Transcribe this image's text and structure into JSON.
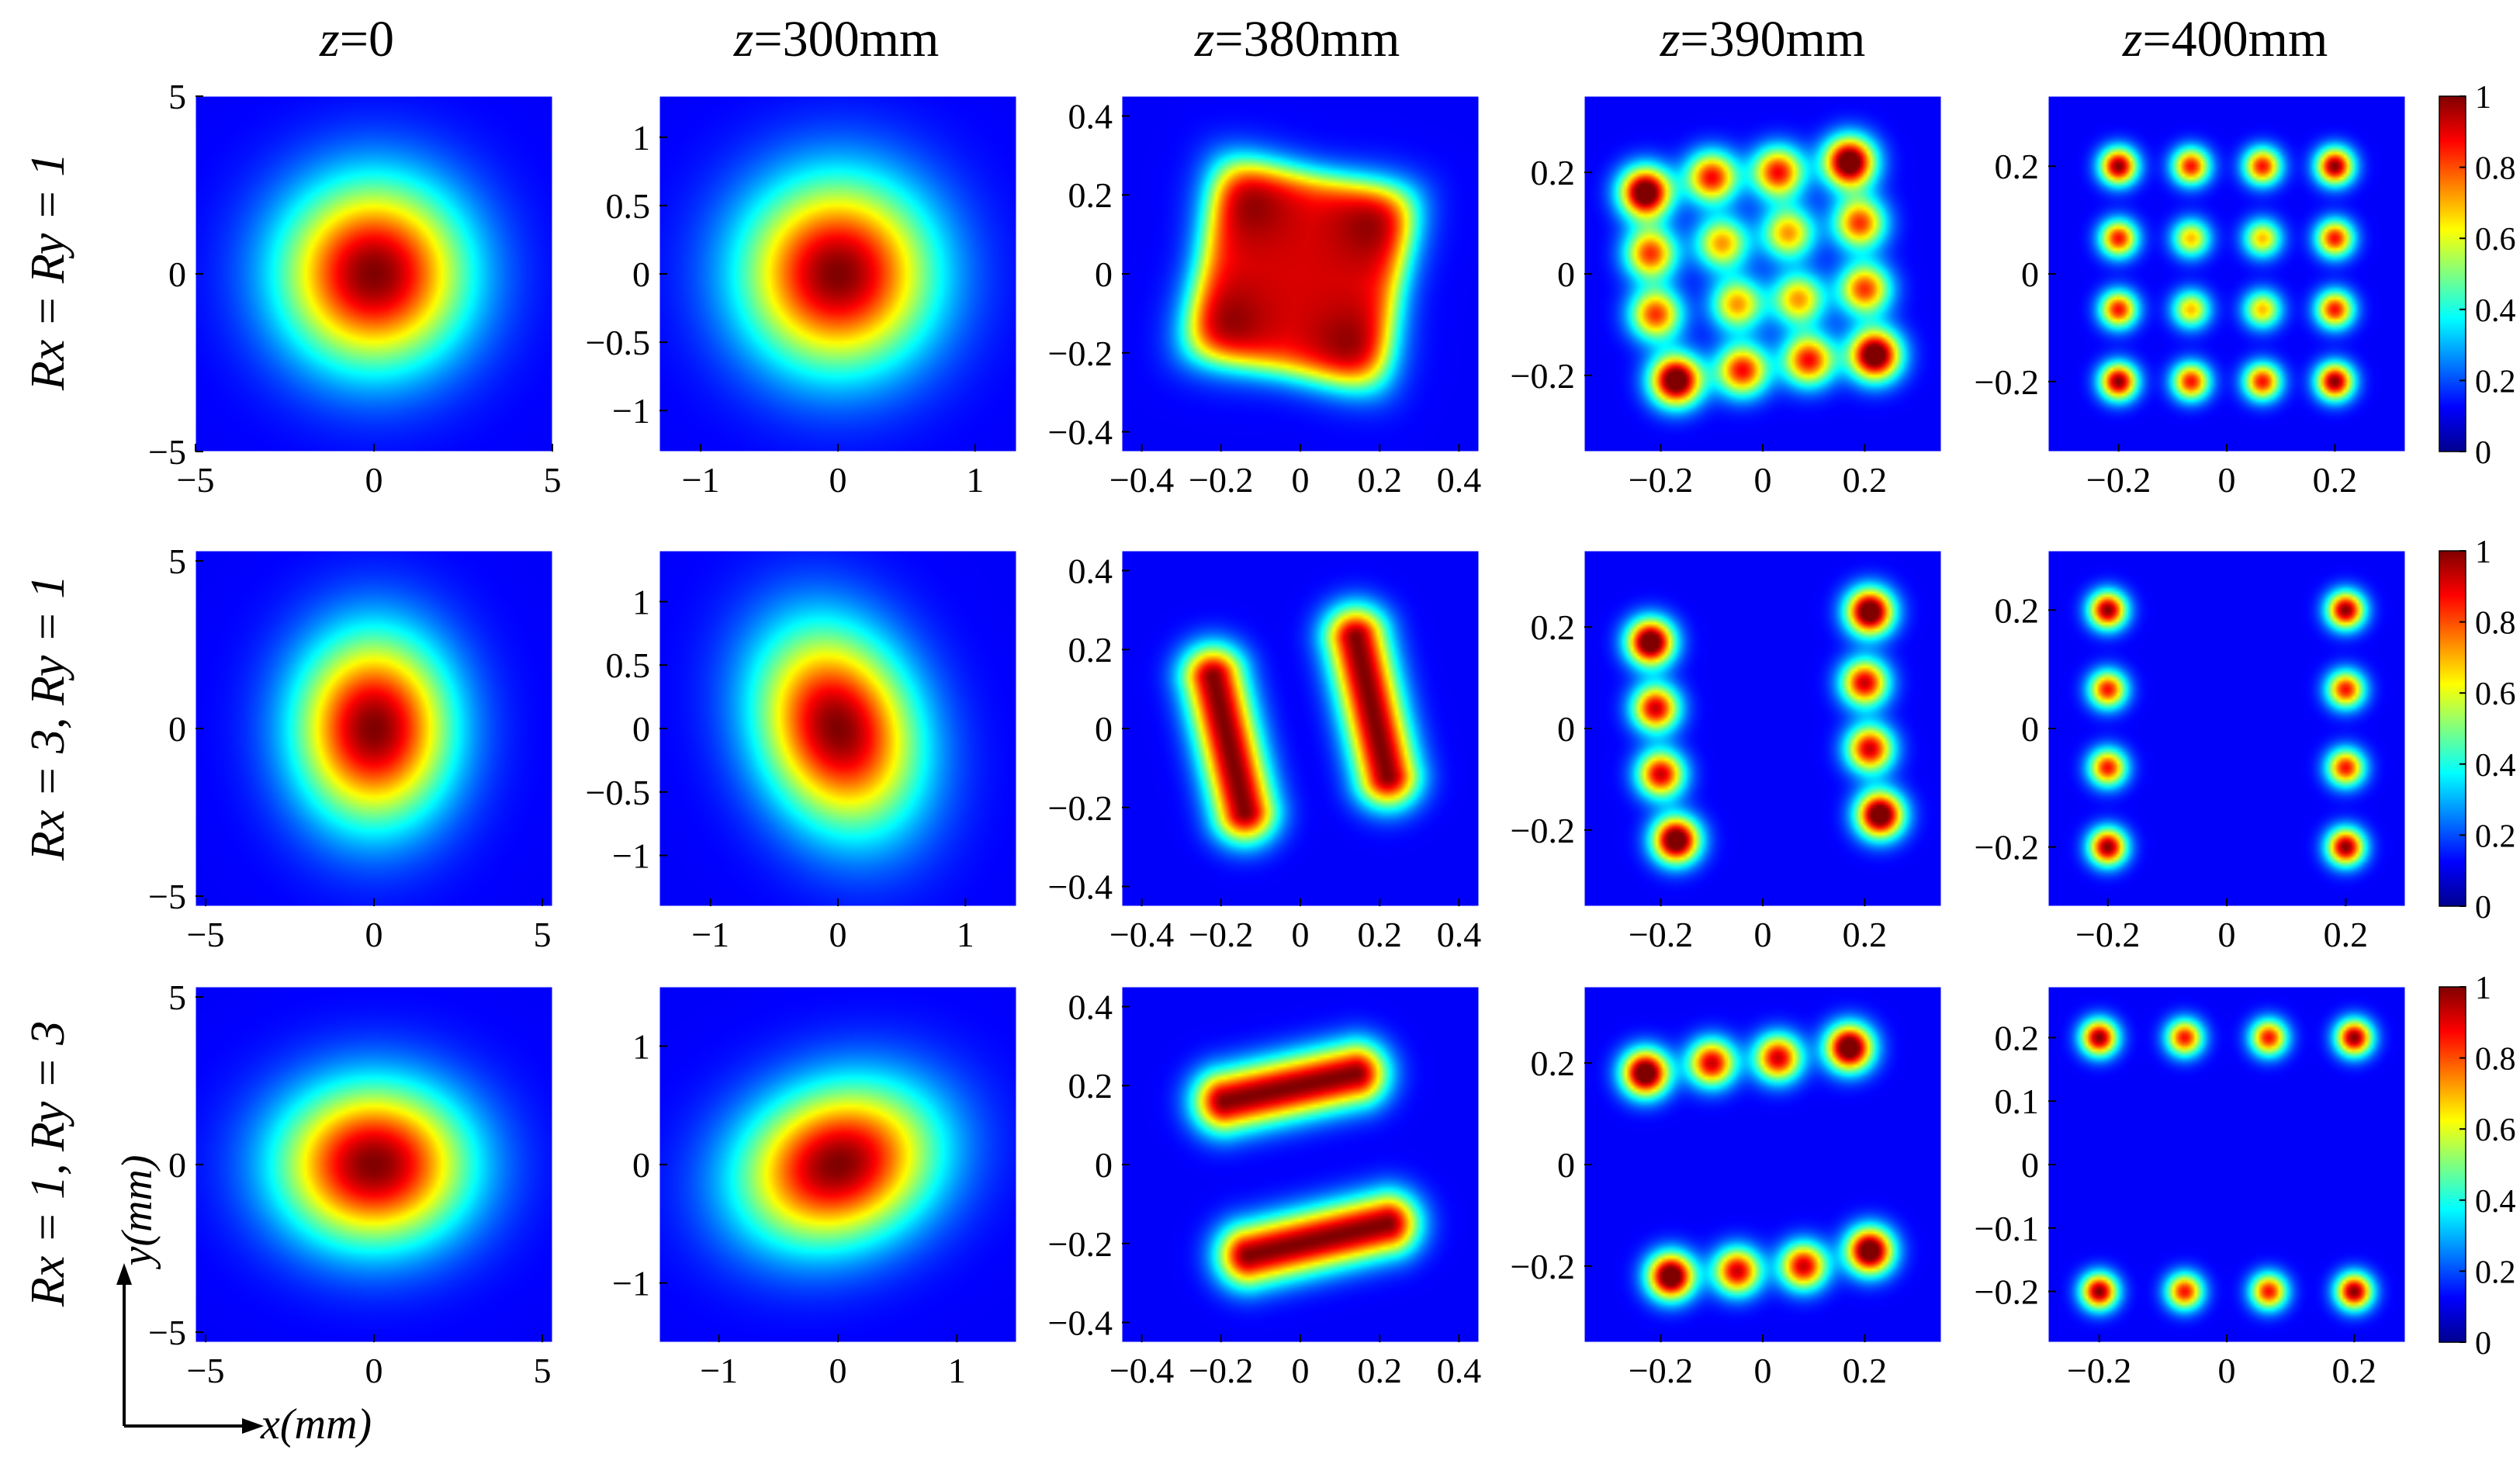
{
  "figure": {
    "column_headers": [
      {
        "var": "z",
        "value": "=0"
      },
      {
        "var": "z",
        "value": "=300mm"
      },
      {
        "var": "z",
        "value": "=380mm"
      },
      {
        "var": "z",
        "value": "=390mm"
      },
      {
        "var": "z",
        "value": "=400mm"
      }
    ],
    "row_labels": [
      {
        "text": "Rx = Ry = 1"
      },
      {
        "text": "Rx = 3, Ry = 1"
      },
      {
        "text": "Rx = 1, Ry = 3"
      }
    ],
    "axis_indicator": {
      "y": "y(mm)",
      "x": "x(mm)"
    }
  },
  "chart_data": [
    {
      "type": "heatmap",
      "row": 0,
      "col": 0,
      "title": "z=0",
      "xlim": [
        -5,
        5
      ],
      "ylim": [
        -5,
        5
      ],
      "xticks": [
        -5,
        0,
        5
      ],
      "xtick_labels": [
        "−5",
        "0",
        "5"
      ],
      "yticks": [
        -5,
        0,
        5
      ],
      "ytick_labels": [
        "−5",
        "0",
        "5"
      ],
      "beam": {
        "kind": "gauss",
        "spots": [
          [
            0,
            0
          ]
        ],
        "sx": 1.8,
        "sy": 1.8,
        "rot": 0
      }
    },
    {
      "type": "heatmap",
      "row": 0,
      "col": 1,
      "title": "z=300mm",
      "xlim": [
        -1.3,
        1.3
      ],
      "ylim": [
        -1.3,
        1.3
      ],
      "xticks": [
        -1,
        0,
        1
      ],
      "xtick_labels": [
        "−1",
        "0",
        "1"
      ],
      "yticks": [
        -1,
        -0.5,
        0,
        0.5,
        1
      ],
      "ytick_labels": [
        "−1",
        "−0.5",
        "0",
        "0.5",
        "1"
      ],
      "beam": {
        "kind": "gauss",
        "spots": [
          [
            0,
            0
          ]
        ],
        "sx": 0.48,
        "sy": 0.48,
        "rot": 0
      }
    },
    {
      "type": "heatmap",
      "row": 0,
      "col": 2,
      "title": "z=380mm",
      "xlim": [
        -0.45,
        0.45
      ],
      "ylim": [
        -0.45,
        0.45
      ],
      "xticks": [
        -0.4,
        -0.2,
        0,
        0.2,
        0.4
      ],
      "xtick_labels": [
        "−0.4",
        "−0.2",
        "0",
        "0.2",
        "0.4"
      ],
      "yticks": [
        -0.4,
        -0.2,
        0,
        0.2,
        0.4
      ],
      "ytick_labels": [
        "−0.4",
        "−0.2",
        "0",
        "0.2",
        "0.4"
      ],
      "beam": {
        "kind": "square",
        "half": 0.25,
        "rot": 0.18
      }
    },
    {
      "type": "heatmap",
      "row": 0,
      "col": 3,
      "title": "z=390mm",
      "xlim": [
        -0.35,
        0.35
      ],
      "ylim": [
        -0.35,
        0.35
      ],
      "xticks": [
        -0.2,
        0,
        0.2
      ],
      "xtick_labels": [
        "−0.2",
        "0",
        "0.2"
      ],
      "yticks": [
        -0.2,
        0,
        0.2
      ],
      "ytick_labels": [
        "−0.2",
        "0",
        "0.2"
      ],
      "beam": {
        "kind": "spots",
        "sigma": 0.035,
        "spots": [
          [
            -0.23,
            0.16
          ],
          [
            -0.1,
            0.19
          ],
          [
            0.03,
            0.2
          ],
          [
            0.17,
            0.22
          ],
          [
            -0.22,
            0.04
          ],
          [
            -0.08,
            0.06
          ],
          [
            0.05,
            0.08
          ],
          [
            0.19,
            0.1
          ],
          [
            -0.21,
            -0.08
          ],
          [
            -0.05,
            -0.06
          ],
          [
            0.07,
            -0.05
          ],
          [
            0.2,
            -0.03
          ],
          [
            -0.17,
            -0.21
          ],
          [
            -0.04,
            -0.19
          ],
          [
            0.09,
            -0.17
          ],
          [
            0.22,
            -0.16
          ]
        ],
        "amps": [
          1,
          0.75,
          0.75,
          1,
          0.7,
          0.6,
          0.6,
          0.7,
          0.7,
          0.6,
          0.6,
          0.7,
          1,
          0.75,
          0.75,
          1
        ],
        "bridge": true
      }
    },
    {
      "type": "heatmap",
      "row": 0,
      "col": 4,
      "title": "z=400mm",
      "xlim": [
        -0.33,
        0.33
      ],
      "ylim": [
        -0.33,
        0.33
      ],
      "xticks": [
        -0.2,
        0,
        0.2
      ],
      "xtick_labels": [
        "−0.2",
        "0",
        "0.2"
      ],
      "yticks": [
        -0.2,
        0,
        0.2
      ],
      "ytick_labels": [
        "−0.2",
        "0",
        "0.2"
      ],
      "beam": {
        "kind": "spots",
        "sigma": 0.024,
        "spots": [
          [
            -0.2,
            0.2
          ],
          [
            -0.066,
            0.2
          ],
          [
            0.066,
            0.2
          ],
          [
            0.2,
            0.2
          ],
          [
            -0.2,
            0.066
          ],
          [
            -0.066,
            0.066
          ],
          [
            0.066,
            0.066
          ],
          [
            0.2,
            0.066
          ],
          [
            -0.2,
            -0.066
          ],
          [
            -0.066,
            -0.066
          ],
          [
            0.066,
            -0.066
          ],
          [
            0.2,
            -0.066
          ],
          [
            -0.2,
            -0.2
          ],
          [
            -0.066,
            -0.2
          ],
          [
            0.066,
            -0.2
          ],
          [
            0.2,
            -0.2
          ]
        ],
        "amps": [
          1,
          0.85,
          0.85,
          1,
          0.85,
          0.65,
          0.65,
          0.85,
          0.85,
          0.65,
          0.65,
          0.85,
          1,
          0.85,
          0.85,
          1
        ]
      },
      "colorbar": {
        "min": 0,
        "max": 1,
        "ticks": [
          0,
          0.2,
          0.4,
          0.6,
          0.8,
          1
        ],
        "tick_labels": [
          "0",
          "0.2",
          "0.4",
          "0.6",
          "0.8",
          "1"
        ]
      }
    },
    {
      "type": "heatmap",
      "row": 1,
      "col": 0,
      "title": "z=0",
      "xlim": [
        -5.3,
        5.3
      ],
      "ylim": [
        -5.3,
        5.3
      ],
      "xticks": [
        -5,
        0,
        5
      ],
      "xtick_labels": [
        "−5",
        "0",
        "5"
      ],
      "yticks": [
        -5,
        0,
        5
      ],
      "ytick_labels": [
        "−5",
        "0",
        "5"
      ],
      "beam": {
        "kind": "gauss",
        "spots": [
          [
            0,
            0
          ]
        ],
        "sx": 1.6,
        "sy": 1.95,
        "rot": 0
      }
    },
    {
      "type": "heatmap",
      "row": 1,
      "col": 1,
      "title": "z=300mm",
      "xlim": [
        -1.4,
        1.4
      ],
      "ylim": [
        -1.4,
        1.4
      ],
      "xticks": [
        -1,
        0,
        1
      ],
      "xtick_labels": [
        "−1",
        "0",
        "1"
      ],
      "yticks": [
        -1,
        -0.5,
        0,
        0.5,
        1
      ],
      "ytick_labels": [
        "−1",
        "−0.5",
        "0",
        "0.5",
        "1"
      ],
      "beam": {
        "kind": "gauss",
        "spots": [
          [
            0,
            0
          ]
        ],
        "sx": 0.42,
        "sy": 0.56,
        "rot": -0.35
      }
    },
    {
      "type": "heatmap",
      "row": 1,
      "col": 2,
      "title": "z=380mm",
      "xlim": [
        -0.45,
        0.45
      ],
      "ylim": [
        -0.45,
        0.45
      ],
      "xticks": [
        -0.4,
        -0.2,
        0,
        0.2,
        0.4
      ],
      "xtick_labels": [
        "−0.4",
        "−0.2",
        "0",
        "0.2",
        "0.4"
      ],
      "yticks": [
        -0.4,
        -0.2,
        0,
        0.2,
        0.4
      ],
      "ytick_labels": [
        "−0.4",
        "−0.2",
        "0",
        "0.2",
        "0.4"
      ],
      "beam": {
        "kind": "bars",
        "bars": [
          [
            [
              -0.22,
              0.13
            ],
            [
              -0.14,
              -0.21
            ]
          ],
          [
            [
              0.14,
              0.23
            ],
            [
              0.22,
              -0.12
            ]
          ]
        ]
      }
    },
    {
      "type": "heatmap",
      "row": 1,
      "col": 3,
      "title": "z=390mm",
      "xlim": [
        -0.35,
        0.35
      ],
      "ylim": [
        -0.35,
        0.35
      ],
      "xticks": [
        -0.2,
        0,
        0.2
      ],
      "xtick_labels": [
        "−0.2",
        "0",
        "0.2"
      ],
      "yticks": [
        -0.2,
        0,
        0.2
      ],
      "ytick_labels": [
        "−0.2",
        "0",
        "0.2"
      ],
      "beam": {
        "kind": "spots",
        "sigma": 0.032,
        "spots": [
          [
            -0.22,
            0.17
          ],
          [
            -0.21,
            0.04
          ],
          [
            -0.2,
            -0.09
          ],
          [
            -0.17,
            -0.22
          ],
          [
            0.21,
            0.23
          ],
          [
            0.2,
            0.09
          ],
          [
            0.21,
            -0.04
          ],
          [
            0.23,
            -0.17
          ]
        ],
        "amps": [
          1,
          0.8,
          0.8,
          1,
          1,
          0.8,
          0.8,
          1
        ],
        "bridge": true
      }
    },
    {
      "type": "heatmap",
      "row": 1,
      "col": 4,
      "title": "z=400mm",
      "xlim": [
        -0.3,
        0.3
      ],
      "ylim": [
        -0.3,
        0.3
      ],
      "xticks": [
        -0.2,
        0,
        0.2
      ],
      "xtick_labels": [
        "−0.2",
        "0",
        "0.2"
      ],
      "yticks": [
        -0.2,
        0,
        0.2
      ],
      "ytick_labels": [
        "−0.2",
        "0",
        "0.2"
      ],
      "beam": {
        "kind": "spots",
        "sigma": 0.022,
        "spots": [
          [
            -0.2,
            0.2
          ],
          [
            -0.2,
            0.066
          ],
          [
            -0.2,
            -0.066
          ],
          [
            -0.2,
            -0.2
          ],
          [
            0.2,
            0.2
          ],
          [
            0.2,
            0.066
          ],
          [
            0.2,
            -0.066
          ],
          [
            0.2,
            -0.2
          ]
        ],
        "amps": [
          1,
          0.85,
          0.85,
          1,
          1,
          0.85,
          0.85,
          1
        ]
      },
      "colorbar": {
        "min": 0,
        "max": 1,
        "ticks": [
          0,
          0.2,
          0.4,
          0.6,
          0.8,
          1
        ],
        "tick_labels": [
          "0",
          "0.2",
          "0.4",
          "0.6",
          "0.8",
          "1"
        ]
      }
    },
    {
      "type": "heatmap",
      "row": 2,
      "col": 0,
      "title": "z=0",
      "xlim": [
        -5.3,
        5.3
      ],
      "ylim": [
        -5.3,
        5.3
      ],
      "xticks": [
        -5,
        0,
        5
      ],
      "xtick_labels": [
        "−5",
        "0",
        "5"
      ],
      "yticks": [
        -5,
        0,
        5
      ],
      "ytick_labels": [
        "−5",
        "0",
        "5"
      ],
      "beam": {
        "kind": "gauss",
        "spots": [
          [
            0,
            0
          ]
        ],
        "sx": 1.95,
        "sy": 1.65,
        "rot": 0
      }
    },
    {
      "type": "heatmap",
      "row": 2,
      "col": 1,
      "title": "z=300mm",
      "xlim": [
        -1.5,
        1.5
      ],
      "ylim": [
        -1.5,
        1.5
      ],
      "xticks": [
        -1,
        0,
        1
      ],
      "xtick_labels": [
        "−1",
        "0",
        "1"
      ],
      "yticks": [
        -1,
        0,
        1
      ],
      "ytick_labels": [
        "−1",
        "0",
        "1"
      ],
      "beam": {
        "kind": "gauss",
        "spots": [
          [
            0,
            0
          ]
        ],
        "sx": 0.58,
        "sy": 0.45,
        "rot": -0.35
      }
    },
    {
      "type": "heatmap",
      "row": 2,
      "col": 2,
      "title": "z=380mm",
      "xlim": [
        -0.45,
        0.45
      ],
      "ylim": [
        -0.45,
        0.45
      ],
      "xticks": [
        -0.4,
        -0.2,
        0,
        0.2,
        0.4
      ],
      "xtick_labels": [
        "−0.4",
        "−0.2",
        "0",
        "0.2",
        "0.4"
      ],
      "yticks": [
        -0.4,
        -0.2,
        0,
        0.2,
        0.4
      ],
      "ytick_labels": [
        "−0.4",
        "−0.2",
        "0",
        "0.2",
        "0.4"
      ],
      "beam": {
        "kind": "bars",
        "bars": [
          [
            [
              -0.19,
              0.16
            ],
            [
              0.14,
              0.23
            ]
          ],
          [
            [
              -0.13,
              -0.23
            ],
            [
              0.22,
              -0.15
            ]
          ]
        ]
      }
    },
    {
      "type": "heatmap",
      "row": 2,
      "col": 3,
      "title": "z=390mm",
      "xlim": [
        -0.35,
        0.35
      ],
      "ylim": [
        -0.35,
        0.35
      ],
      "xticks": [
        -0.2,
        0,
        0.2
      ],
      "xtick_labels": [
        "−0.2",
        "0",
        "0.2"
      ],
      "yticks": [
        -0.2,
        0,
        0.2
      ],
      "ytick_labels": [
        "−0.2",
        "0",
        "0.2"
      ],
      "beam": {
        "kind": "spots",
        "sigma": 0.032,
        "spots": [
          [
            -0.23,
            0.18
          ],
          [
            -0.1,
            0.2
          ],
          [
            0.03,
            0.21
          ],
          [
            0.17,
            0.23
          ],
          [
            -0.18,
            -0.22
          ],
          [
            -0.05,
            -0.21
          ],
          [
            0.08,
            -0.2
          ],
          [
            0.21,
            -0.17
          ]
        ],
        "amps": [
          1,
          0.8,
          0.8,
          1,
          1,
          0.8,
          0.8,
          1
        ],
        "bridge": true
      }
    },
    {
      "type": "heatmap",
      "row": 2,
      "col": 4,
      "title": "z=400mm",
      "xlim": [
        -0.28,
        0.28
      ],
      "ylim": [
        -0.28,
        0.28
      ],
      "xticks": [
        -0.2,
        0,
        0.2
      ],
      "xtick_labels": [
        "−0.2",
        "0",
        "0.2"
      ],
      "yticks": [
        -0.2,
        -0.1,
        0,
        0.1,
        0.2
      ],
      "ytick_labels": [
        "−0.2",
        "−0.1",
        "0",
        "0.1",
        "0.2"
      ],
      "beam": {
        "kind": "spots",
        "sigma": 0.02,
        "spots": [
          [
            -0.2,
            0.2
          ],
          [
            -0.066,
            0.2
          ],
          [
            0.066,
            0.2
          ],
          [
            0.2,
            0.2
          ],
          [
            -0.2,
            -0.2
          ],
          [
            -0.066,
            -0.2
          ],
          [
            0.066,
            -0.2
          ],
          [
            0.2,
            -0.2
          ]
        ],
        "amps": [
          1,
          0.85,
          0.85,
          1,
          1,
          0.85,
          0.85,
          1
        ]
      },
      "colorbar": {
        "min": 0,
        "max": 1,
        "ticks": [
          0,
          0.2,
          0.4,
          0.6,
          0.8,
          1
        ],
        "tick_labels": [
          "0",
          "0.2",
          "0.4",
          "0.6",
          "0.8",
          "1"
        ]
      }
    }
  ]
}
